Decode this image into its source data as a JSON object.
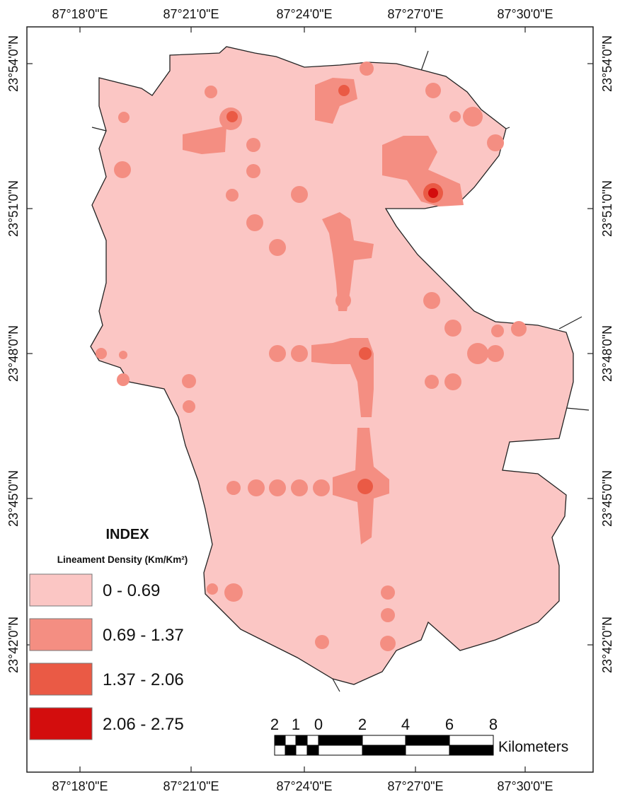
{
  "coordinates": {
    "top": [
      "87°18'0\"E",
      "87°21'0\"E",
      "87°24'0\"E",
      "87°27'0\"E",
      "87°30'0\"E"
    ],
    "bottom": [
      "87°18'0\"E",
      "87°21'0\"E",
      "87°24'0\"E",
      "87°27'0\"E",
      "87°30'0\"E"
    ],
    "left": [
      "23°54'0\"N",
      "23°51'0\"N",
      "23°48'0\"N",
      "23°45'0\"N",
      "23°42'0\"N"
    ],
    "right": [
      "23°54'0\"N",
      "23°51'0\"N",
      "23°48'0\"N",
      "23°45'0\"N",
      "23°42'0\"N"
    ]
  },
  "legend": {
    "title": "INDEX",
    "subtitle": "Lineament Density (Km/Km²)",
    "items": [
      {
        "label": "0 - 0.69",
        "color": "#fbc6c4"
      },
      {
        "label": "0.69 - 1.37",
        "color": "#f48e82"
      },
      {
        "label": "1.37 - 2.06",
        "color": "#ea5a45"
      },
      {
        "label": "2.06 - 2.75",
        "color": "#d30d0d"
      }
    ]
  },
  "scale_bar": {
    "labels": [
      2,
      1,
      0,
      2,
      4,
      6,
      8
    ],
    "unit": "Kilometers"
  }
}
